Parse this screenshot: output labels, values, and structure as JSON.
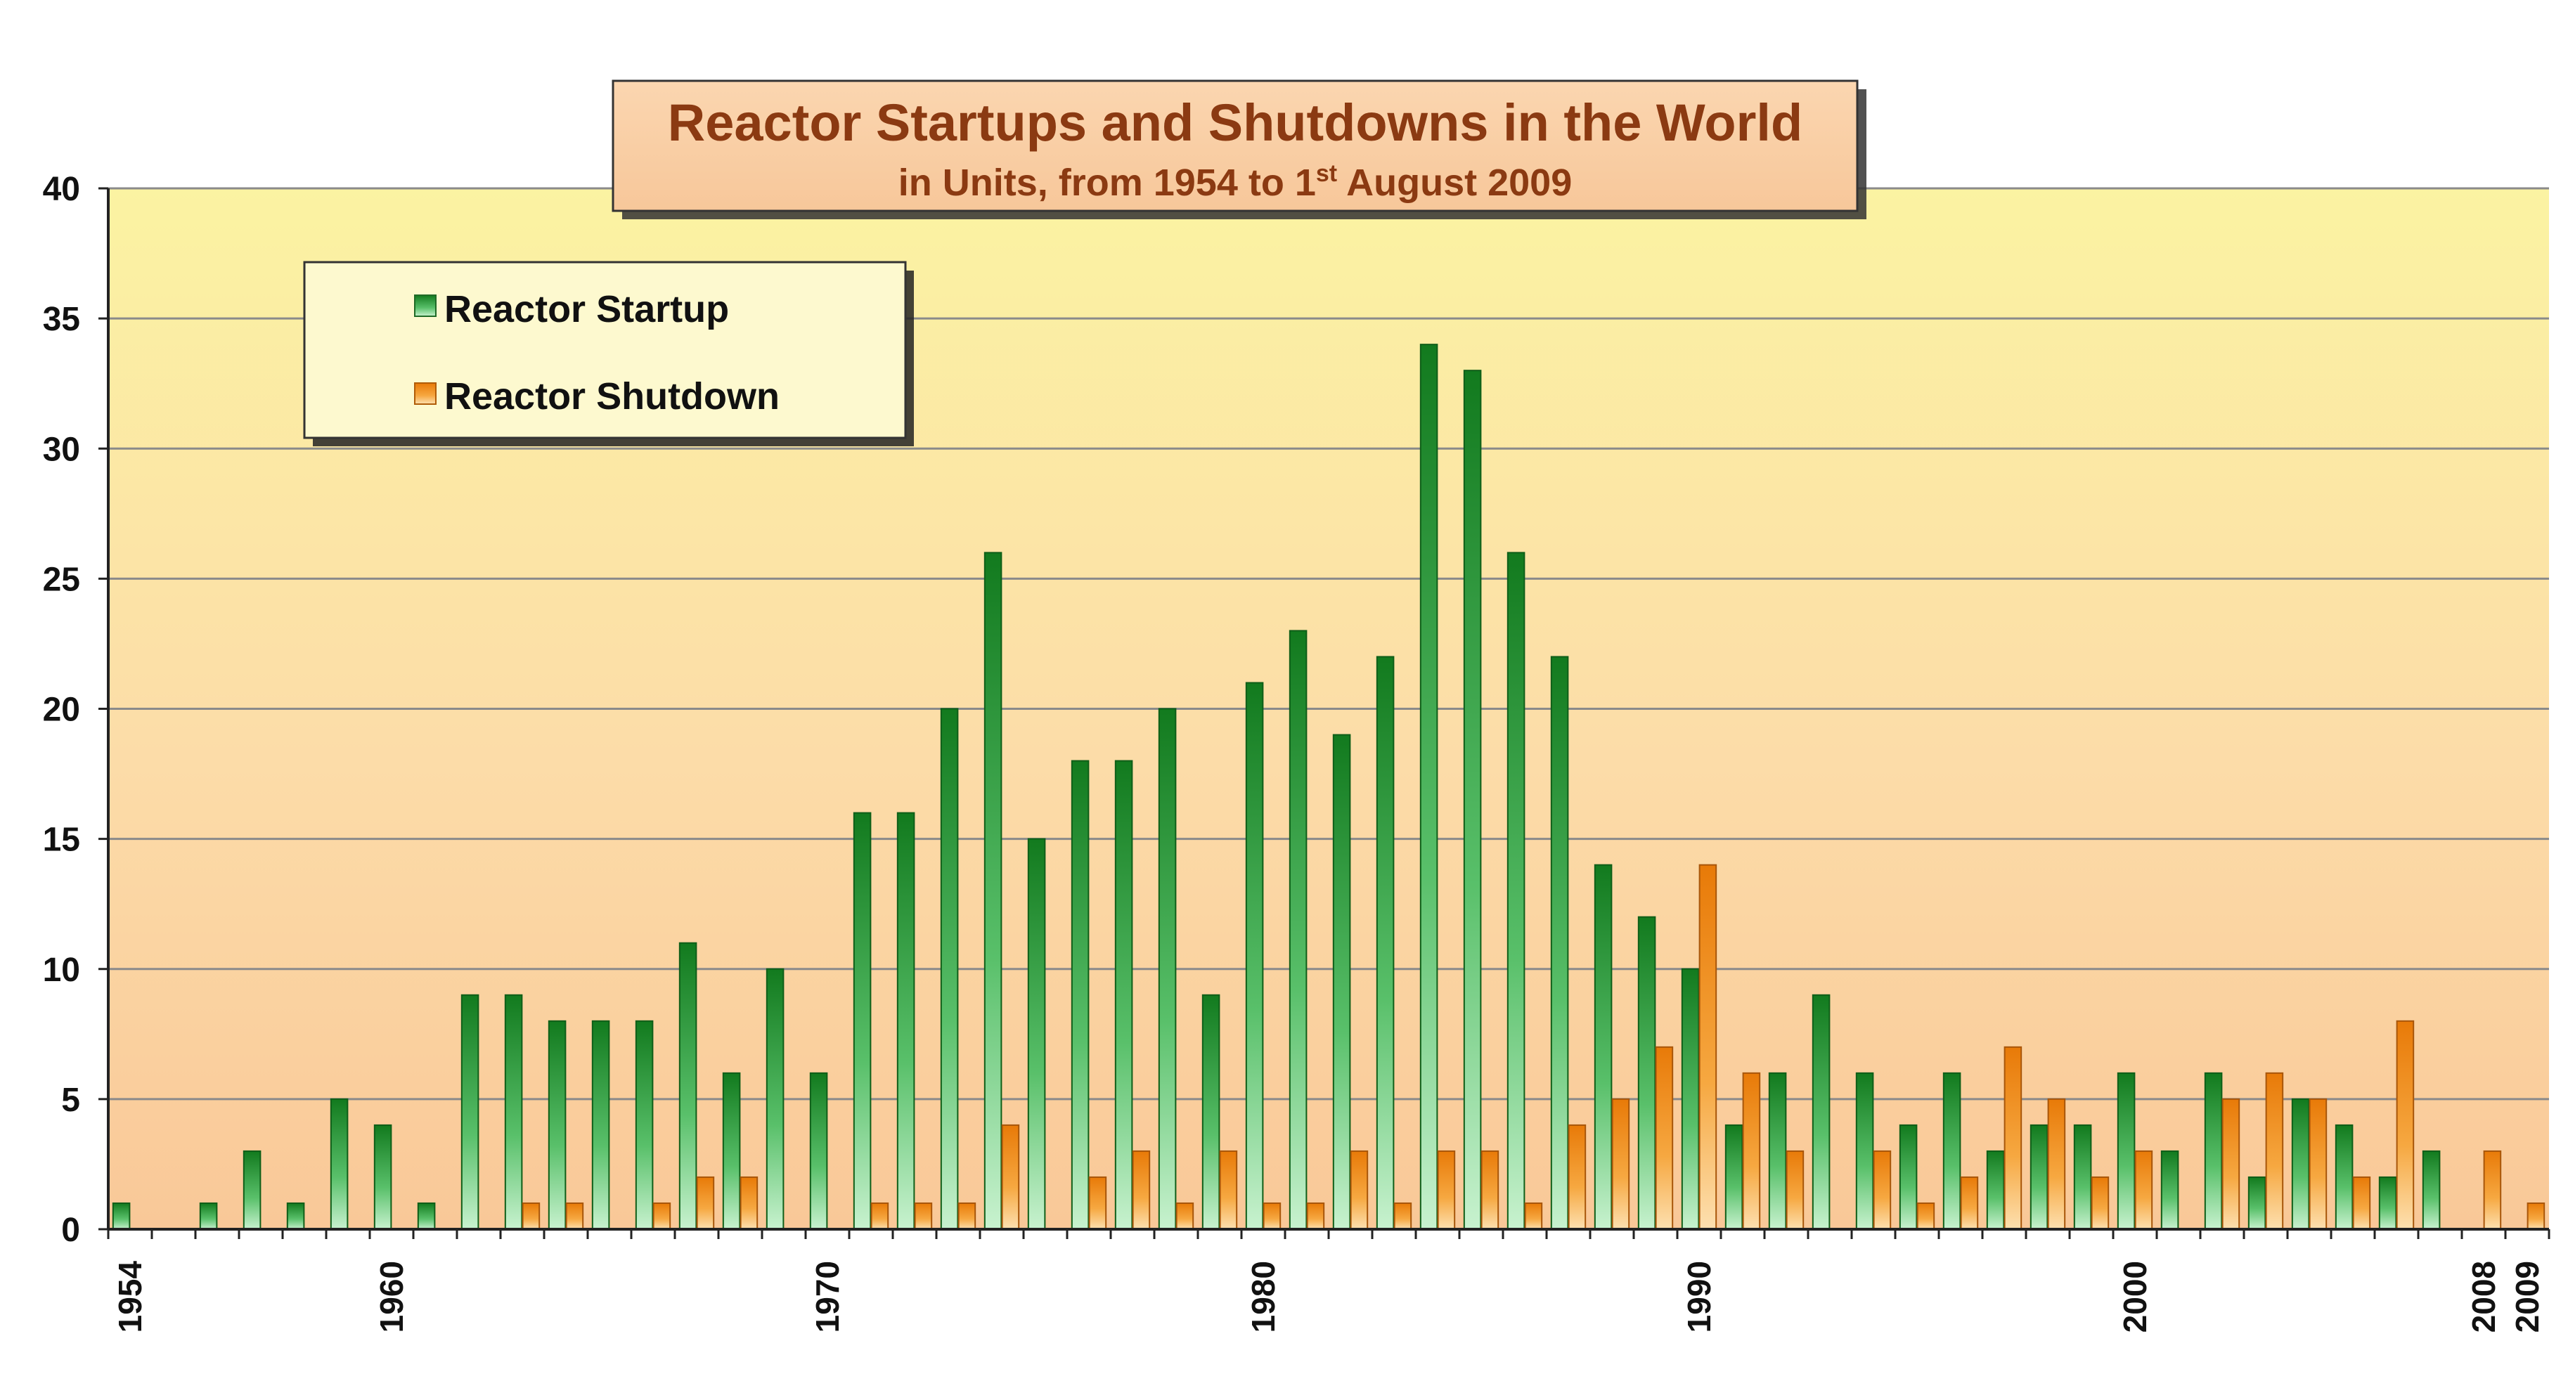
{
  "chart_data": {
    "type": "bar",
    "title": "Reactor Startups and Shutdowns in the World",
    "subtitle": {
      "prefix": "in Units, from 1954 to 1",
      "superscript": "st",
      "suffix": " August 2009"
    },
    "xlabel": "",
    "ylabel": "",
    "ylim": [
      0,
      40
    ],
    "yticks": [
      0,
      5,
      10,
      15,
      20,
      25,
      30,
      35,
      40
    ],
    "x_tick_labels": [
      1954,
      1960,
      1970,
      1980,
      1990,
      2000,
      2008,
      2009
    ],
    "grid": true,
    "legend_position": "top-left",
    "categories": [
      1954,
      1955,
      1956,
      1957,
      1958,
      1959,
      1960,
      1961,
      1962,
      1963,
      1964,
      1965,
      1966,
      1967,
      1968,
      1969,
      1970,
      1971,
      1972,
      1973,
      1974,
      1975,
      1976,
      1977,
      1978,
      1979,
      1980,
      1981,
      1982,
      1983,
      1984,
      1985,
      1986,
      1987,
      1988,
      1989,
      1990,
      1991,
      1992,
      1993,
      1994,
      1995,
      1996,
      1997,
      1998,
      1999,
      2000,
      2001,
      2002,
      2003,
      2004,
      2005,
      2006,
      2007,
      2008,
      2009
    ],
    "series": [
      {
        "name": "Reactor Startup",
        "color": "#1f8a2c",
        "values": [
          1,
          0,
          1,
          3,
          1,
          5,
          4,
          1,
          9,
          9,
          8,
          8,
          8,
          11,
          6,
          10,
          6,
          16,
          16,
          20,
          26,
          15,
          18,
          18,
          20,
          9,
          21,
          23,
          19,
          22,
          34,
          33,
          26,
          22,
          14,
          12,
          10,
          4,
          6,
          9,
          6,
          4,
          6,
          3,
          4,
          4,
          6,
          3,
          6,
          2,
          5,
          4,
          2,
          3,
          0,
          0
        ]
      },
      {
        "name": "Reactor Shutdown",
        "color": "#f08a10",
        "values": [
          0,
          0,
          0,
          0,
          0,
          0,
          0,
          0,
          0,
          1,
          1,
          0,
          1,
          2,
          2,
          0,
          0,
          1,
          1,
          1,
          4,
          0,
          2,
          3,
          1,
          3,
          1,
          1,
          3,
          1,
          3,
          3,
          1,
          4,
          5,
          7,
          14,
          6,
          3,
          0,
          3,
          1,
          2,
          7,
          5,
          2,
          3,
          0,
          5,
          6,
          5,
          2,
          8,
          0,
          3,
          1
        ]
      }
    ]
  }
}
